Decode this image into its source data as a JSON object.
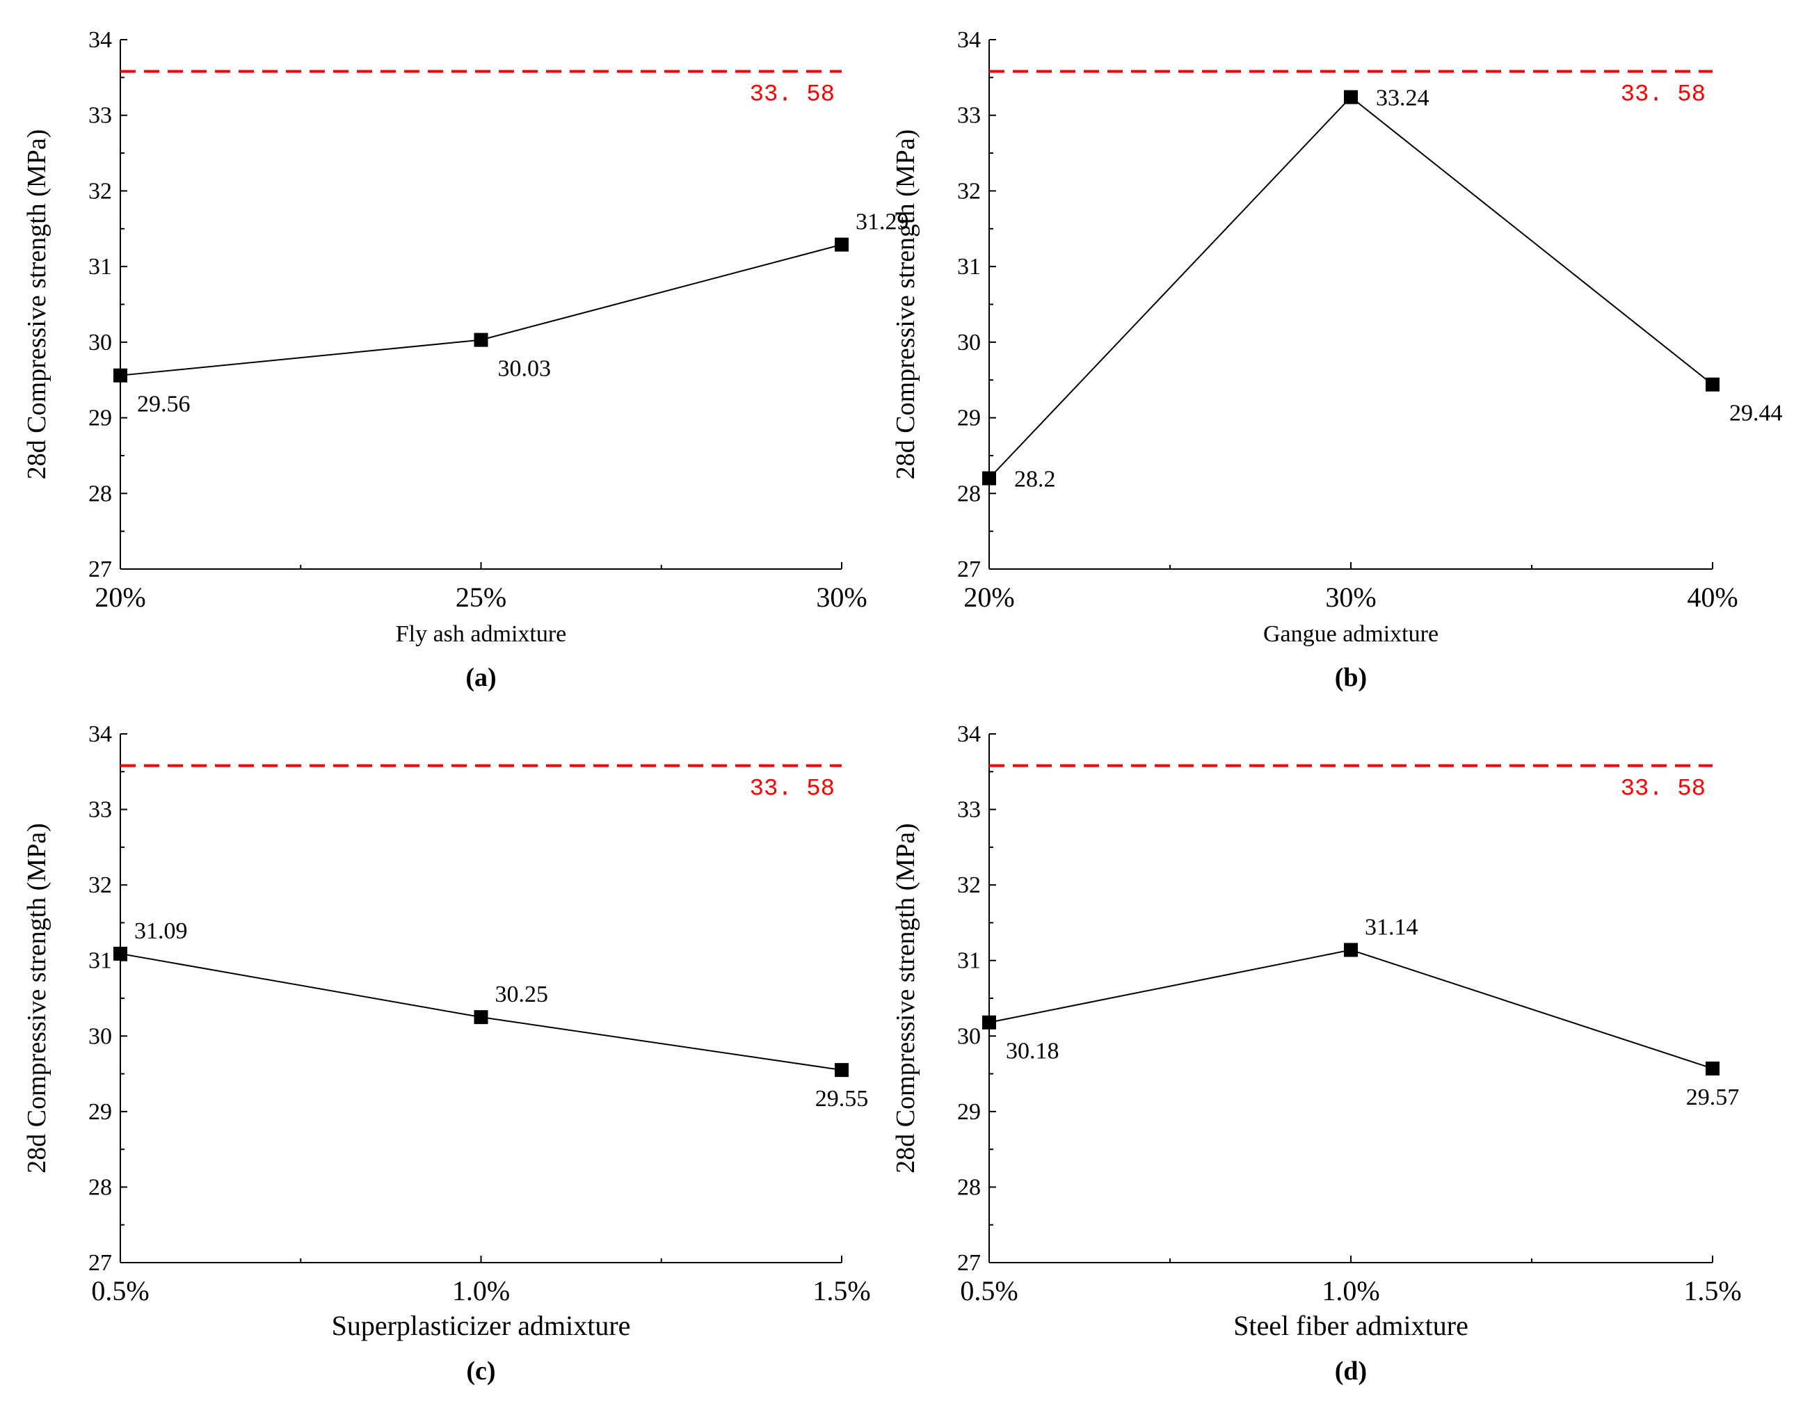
{
  "chart_data": [
    {
      "type": "line",
      "panel_label": "(a)",
      "categories": [
        "20%",
        "25%",
        "30%"
      ],
      "values": [
        29.56,
        30.03,
        31.29
      ],
      "data_labels": [
        "29.56",
        "30.03",
        "31.29"
      ],
      "xlabel": "Fly ash admixture",
      "ylabel": "28d Compressive strength (MPa)",
      "ylim": [
        27,
        34
      ],
      "yticks": [
        27,
        28,
        29,
        30,
        31,
        32,
        33,
        34
      ],
      "reference_line": {
        "value": 33.58,
        "label": "33. 58",
        "color": "#ff0000"
      },
      "label_positions": [
        "below-right",
        "below-right",
        "above-right"
      ]
    },
    {
      "type": "line",
      "panel_label": "(b)",
      "categories": [
        "20%",
        "30%",
        "40%"
      ],
      "values": [
        28.2,
        33.24,
        29.44
      ],
      "data_labels": [
        "28.2",
        "33.24",
        "29.44"
      ],
      "xlabel": "Gangue admixture",
      "ylabel": "28d Compressive strength (MPa)",
      "ylim": [
        27,
        34
      ],
      "yticks": [
        27,
        28,
        29,
        30,
        31,
        32,
        33,
        34
      ],
      "reference_line": {
        "value": 33.58,
        "label": "33. 58",
        "color": "#ff0000"
      },
      "label_positions": [
        "right",
        "right",
        "below-right"
      ]
    },
    {
      "type": "line",
      "panel_label": "(c)",
      "categories": [
        "0.5%",
        "1.0%",
        "1.5%"
      ],
      "values": [
        31.09,
        30.25,
        29.55
      ],
      "data_labels": [
        "31.09",
        "30.25",
        "29.55"
      ],
      "xlabel": "Superplasticizer admixture",
      "ylabel": "28d Compressive strength (MPa)",
      "ylim": [
        27,
        34
      ],
      "yticks": [
        27,
        28,
        29,
        30,
        31,
        32,
        33,
        34
      ],
      "reference_line": {
        "value": 33.58,
        "label": "33. 58",
        "color": "#ff0000"
      },
      "label_positions": [
        "above-right",
        "above-right",
        "below"
      ]
    },
    {
      "type": "line",
      "panel_label": "(d)",
      "categories": [
        "0.5%",
        "1.0%",
        "1.5%"
      ],
      "values": [
        30.18,
        31.14,
        29.57
      ],
      "data_labels": [
        "30.18",
        "31.14",
        "29.57"
      ],
      "xlabel": "Steel fiber admixture",
      "ylabel": "28d Compressive strength (MPa)",
      "ylim": [
        27,
        34
      ],
      "yticks": [
        27,
        28,
        29,
        30,
        31,
        32,
        33,
        34
      ],
      "reference_line": {
        "value": 33.58,
        "label": "33. 58",
        "color": "#ff0000"
      },
      "label_positions": [
        "below-right",
        "above-right",
        "below"
      ]
    }
  ]
}
